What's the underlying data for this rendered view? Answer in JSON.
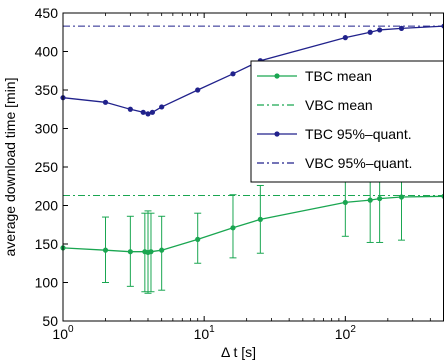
{
  "chart_data": {
    "type": "line",
    "title": "",
    "xlabel": "Δ t [s]",
    "ylabel": "average download time [min]",
    "xscale": "log",
    "xlim": [
      1,
      500
    ],
    "ylim": [
      50,
      450
    ],
    "x_ticks": [
      1,
      10,
      100
    ],
    "x_tick_labels": [
      {
        "base": "10",
        "exp": "0"
      },
      {
        "base": "10",
        "exp": "1"
      },
      {
        "base": "10",
        "exp": "2"
      }
    ],
    "y_ticks": [
      50,
      100,
      150,
      200,
      250,
      300,
      350,
      400,
      450
    ],
    "y_tick_labels": [
      "50",
      "100",
      "150",
      "200",
      "250",
      "300",
      "350",
      "400",
      "450"
    ],
    "grid": false,
    "legend_position": "right",
    "series": [
      {
        "name": "TBC mean",
        "kind": "line-markers-errorbars",
        "color": "#1aa651",
        "x": [
          1,
          2,
          3,
          3.8,
          4,
          4.2,
          5,
          9,
          16,
          25,
          100,
          150,
          175,
          250,
          500
        ],
        "y": [
          145,
          142,
          140,
          140,
          139,
          140,
          142,
          156,
          171,
          182,
          204,
          207,
          209,
          211,
          212
        ],
        "err_low": [
          null,
          100,
          95,
          88,
          86,
          88,
          90,
          125,
          132,
          138,
          160,
          152,
          152,
          155,
          null
        ],
        "err_high": [
          null,
          185,
          186,
          190,
          193,
          190,
          186,
          190,
          214,
          226,
          247,
          258,
          262,
          255,
          null
        ]
      },
      {
        "name": "VBC mean",
        "kind": "dash-dot",
        "color": "#1aa651",
        "y_const": 213
      },
      {
        "name": "TBC 95%–quant.",
        "kind": "line-markers",
        "color": "#21228c",
        "x": [
          1,
          2,
          3,
          3.7,
          4,
          4.3,
          5,
          9,
          16,
          25,
          100,
          150,
          175,
          250,
          500
        ],
        "y": [
          340,
          334,
          325,
          321,
          319,
          321,
          328,
          350,
          371,
          388,
          418,
          425,
          428,
          430,
          433
        ]
      },
      {
        "name": "VBC 95%–quant.",
        "kind": "dash-dot",
        "color": "#21228c",
        "y_const": 433
      }
    ]
  }
}
